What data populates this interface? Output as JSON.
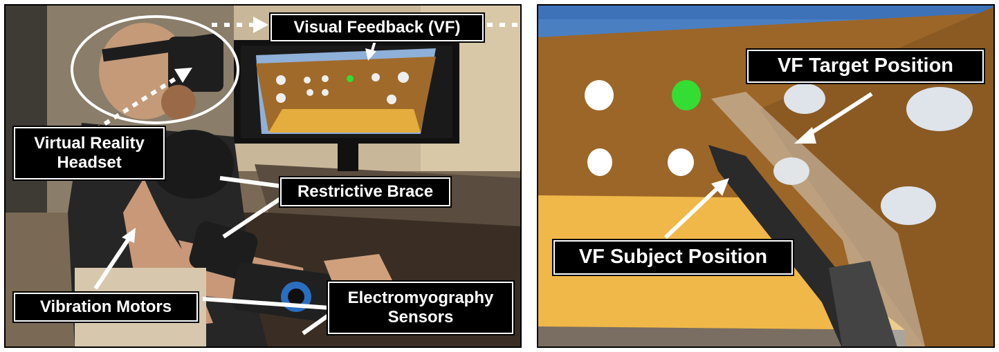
{
  "labels": {
    "visual_feedback": "Visual Feedback (VF)",
    "vr_headset": "Virtual Reality\nHeadset",
    "restrictive_brace": "Restrictive Brace",
    "vibration_motors": "Vibration Motors",
    "emg_sensors": "Electromyography\nSensors",
    "vf_target": "VF Target Position",
    "vf_subject": "VF Subject Position"
  },
  "colors": {
    "label_bg": "#000000",
    "label_text": "#ffffff",
    "arrow": "#ffffff",
    "target_sphere": "#33dd33",
    "wall": "#a06a2a",
    "floor": "#f0b848",
    "sky": "#4a7fc2"
  }
}
